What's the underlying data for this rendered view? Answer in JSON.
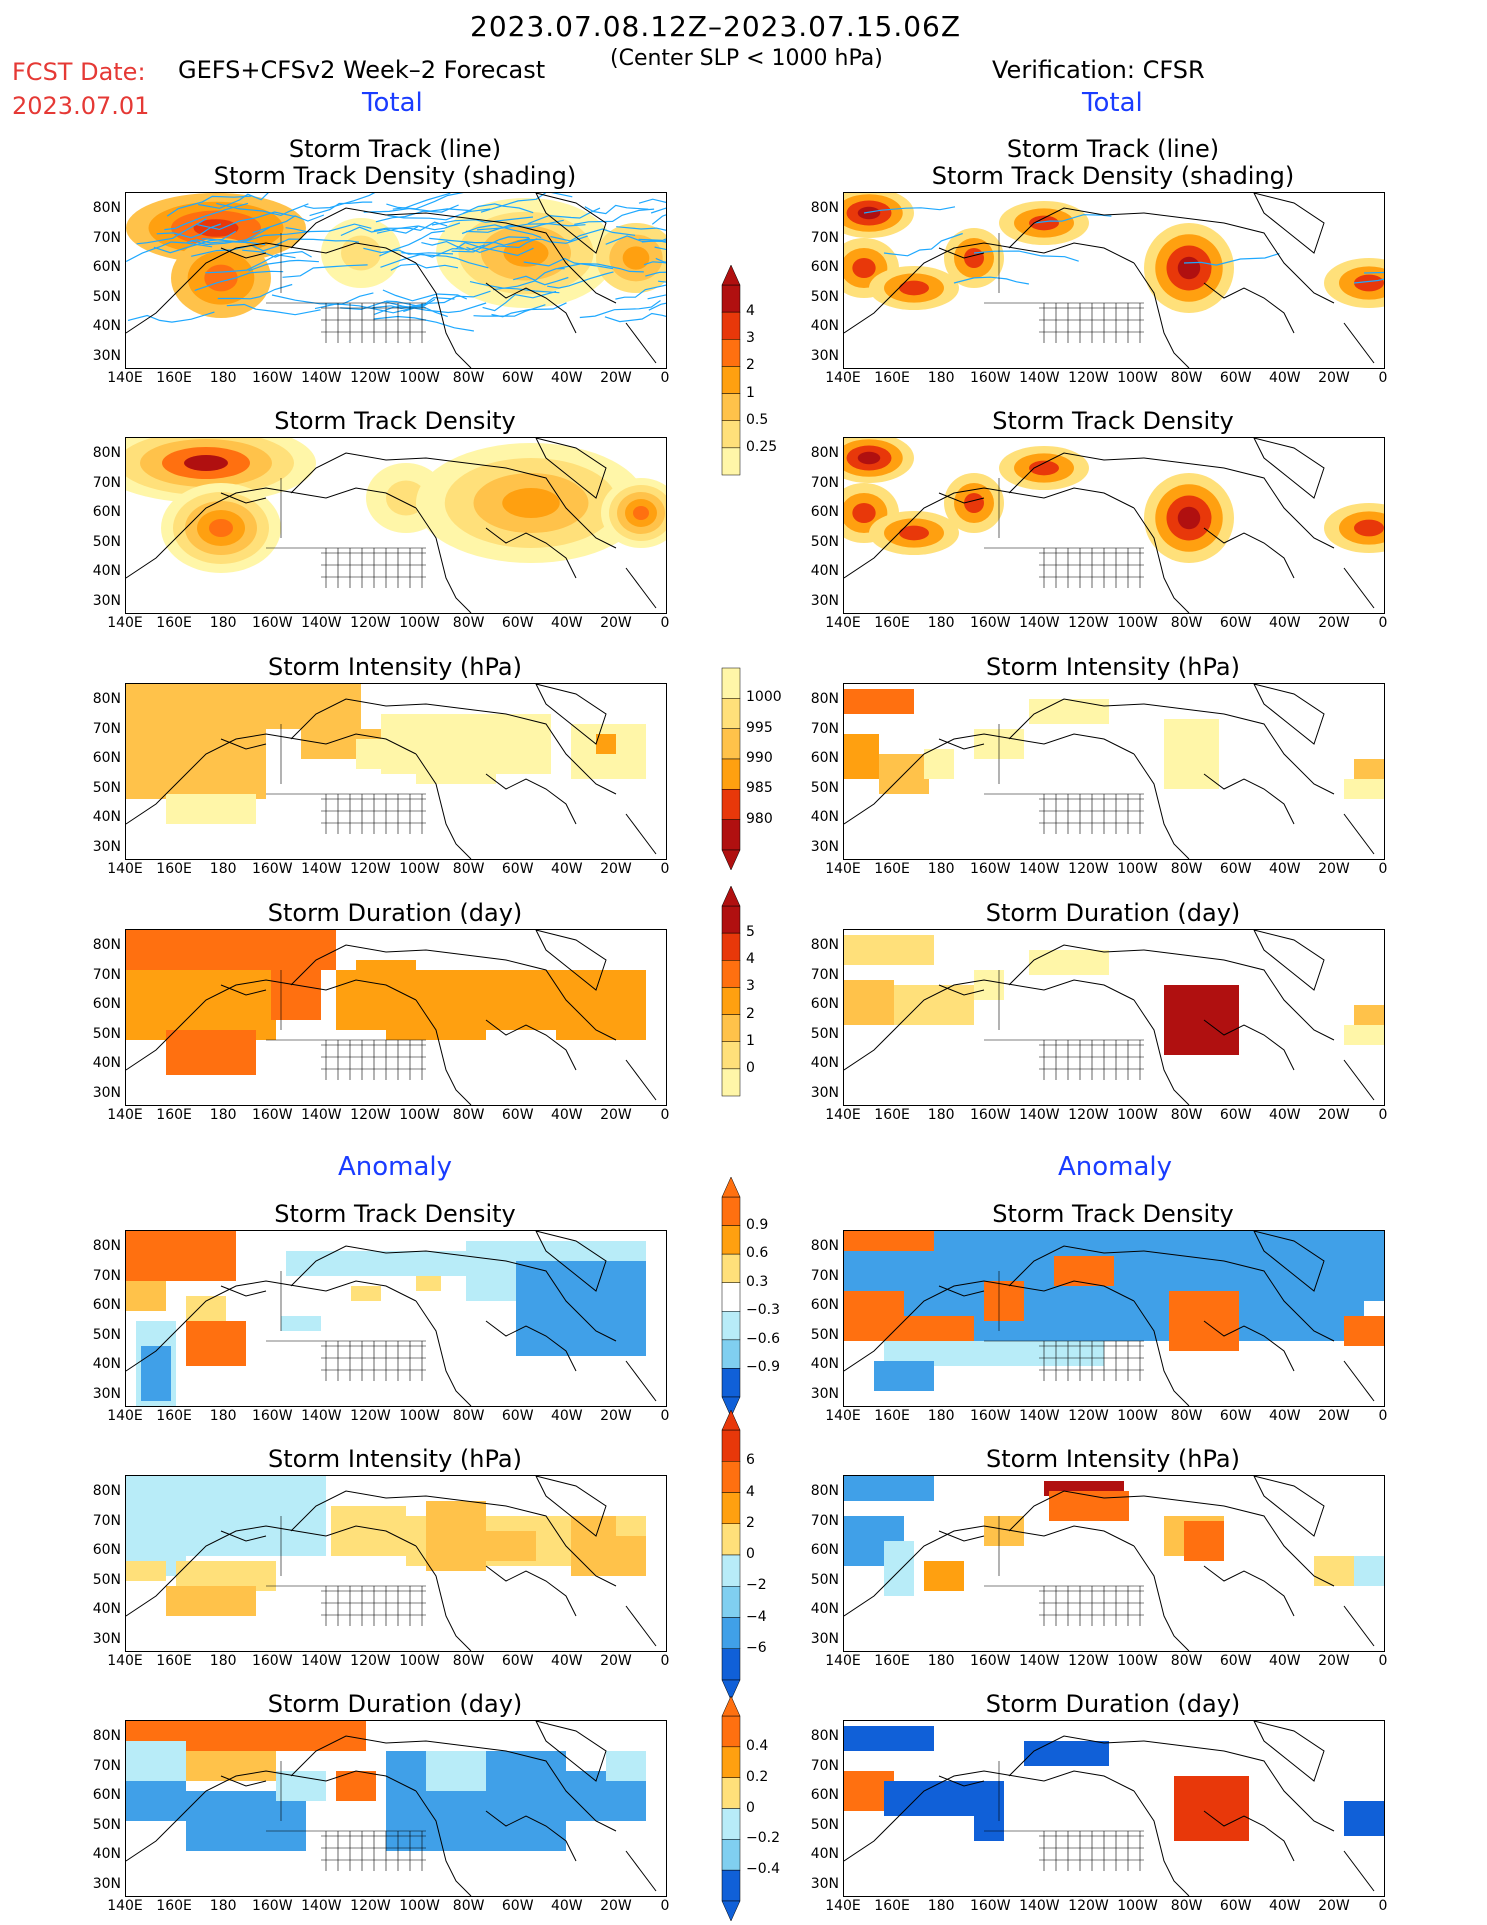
{
  "header": {
    "period": "2023.07.08.12Z–2023.07.15.06Z",
    "fcst_label": "FCST Date:",
    "fcst_date": "2023.07.01",
    "model": "GEFS+CFSv2 Week–2 Forecast",
    "center": "(Center SLP < 1000 hPa)",
    "verification": "Verification: CFSR"
  },
  "sections": {
    "total_left": "Total",
    "total_right": "Total",
    "anomaly_left": "Anomaly",
    "anomaly_right": "Anomaly"
  },
  "panel_titles": {
    "track_line": "Storm Track (line)",
    "track_shading": "Storm Track Density (shading)",
    "density": "Storm Track Density",
    "intensity": "Storm Intensity (hPa)",
    "duration": "Storm Duration (day)"
  },
  "axes": {
    "lat_ticks": [
      "80N",
      "70N",
      "60N",
      "50N",
      "40N",
      "30N"
    ],
    "lon_ticks": [
      "140E",
      "160E",
      "180",
      "160W",
      "140W",
      "120W",
      "100W",
      "80W",
      "60W",
      "40W",
      "20W",
      "0"
    ]
  },
  "colorbars": {
    "density_total": [
      "4",
      "3",
      "2",
      "1",
      "0.5",
      "0.25"
    ],
    "intensity_total": [
      "1000",
      "995",
      "990",
      "985",
      "980"
    ],
    "duration_total": [
      "5",
      "4",
      "3",
      "2",
      "1",
      "0"
    ],
    "density_anom": [
      "0.9",
      "0.6",
      "0.3",
      "−0.3",
      "−0.6",
      "−0.9"
    ],
    "intensity_anom": [
      "6",
      "4",
      "2",
      "0",
      "−2",
      "−4",
      "−6"
    ],
    "duration_anom": [
      "0.4",
      "0.2",
      "0",
      "−0.2",
      "−0.4"
    ]
  },
  "colors": {
    "warm": [
      "#fff6a8",
      "#ffe07a",
      "#ffc24a",
      "#ffa010",
      "#ff7010",
      "#e8380a",
      "#b01010"
    ],
    "cool": [
      "#ffffff",
      "#b8ecf8",
      "#80cff0",
      "#40a0e8",
      "#1060d8"
    ],
    "track_line": "#1ea8ff",
    "accent_red": "#e53935",
    "accent_blue": "#1a3cff"
  }
}
